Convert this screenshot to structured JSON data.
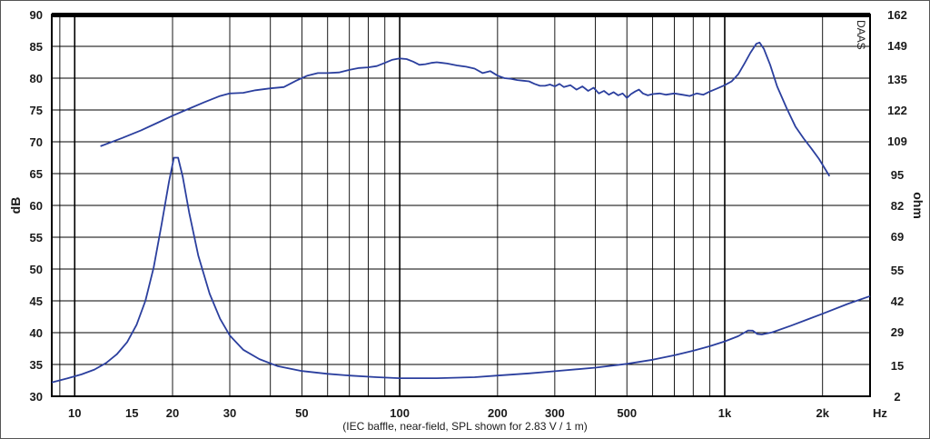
{
  "chart_data": {
    "type": "line",
    "xscale": "log",
    "xlim": [
      8.5,
      2800
    ],
    "ylim": [
      30,
      90
    ],
    "y2lim": [
      2,
      162
    ],
    "ylabel": "dB",
    "y2label": "ohm",
    "xunit": "Hz",
    "caption": "(IEC baffle, near-field, SPL shown for 2.83 V / 1 m)",
    "brand": "DAAS",
    "grid": true,
    "line_color": "#2b3f9e",
    "x_ticks": [
      {
        "v": 10,
        "label": "10"
      },
      {
        "v": 15,
        "label": "15"
      },
      {
        "v": 20,
        "label": "20"
      },
      {
        "v": 30,
        "label": "30"
      },
      {
        "v": 50,
        "label": "50"
      },
      {
        "v": 100,
        "label": "100"
      },
      {
        "v": 200,
        "label": "200"
      },
      {
        "v": 300,
        "label": "300"
      },
      {
        "v": 500,
        "label": "500"
      },
      {
        "v": 1000,
        "label": "1k"
      },
      {
        "v": 2000,
        "label": "2k"
      }
    ],
    "y_ticks": [
      {
        "v": 90,
        "label": "90"
      },
      {
        "v": 85,
        "label": "85"
      },
      {
        "v": 80,
        "label": "80"
      },
      {
        "v": 75,
        "label": "75"
      },
      {
        "v": 70,
        "label": "70"
      },
      {
        "v": 65,
        "label": "65"
      },
      {
        "v": 60,
        "label": "60"
      },
      {
        "v": 55,
        "label": "55"
      },
      {
        "v": 50,
        "label": "50"
      },
      {
        "v": 45,
        "label": "45"
      },
      {
        "v": 40,
        "label": "40"
      },
      {
        "v": 35,
        "label": "35"
      },
      {
        "v": 30,
        "label": "30"
      }
    ],
    "y2_ticks": [
      {
        "v": 162,
        "label": "162"
      },
      {
        "v": 149,
        "label": "149"
      },
      {
        "v": 135,
        "label": "135"
      },
      {
        "v": 122,
        "label": "122"
      },
      {
        "v": 109,
        "label": "109"
      },
      {
        "v": 95,
        "label": "95"
      },
      {
        "v": 82,
        "label": "82"
      },
      {
        "v": 69,
        "label": "69"
      },
      {
        "v": 55,
        "label": "55"
      },
      {
        "v": 42,
        "label": "42"
      },
      {
        "v": 29,
        "label": "29"
      },
      {
        "v": 15,
        "label": "15"
      },
      {
        "v": 2,
        "label": "2"
      }
    ],
    "series": [
      {
        "axis": "left",
        "points": [
          [
            12,
            69.3
          ],
          [
            14,
            70.6
          ],
          [
            16,
            71.8
          ],
          [
            18,
            73.0
          ],
          [
            20,
            74.1
          ],
          [
            22,
            75.0
          ],
          [
            25,
            76.2
          ],
          [
            28,
            77.2
          ],
          [
            30,
            77.6
          ],
          [
            33,
            77.7
          ],
          [
            36,
            78.1
          ],
          [
            40,
            78.4
          ],
          [
            44,
            78.6
          ],
          [
            48,
            79.6
          ],
          [
            52,
            80.4
          ],
          [
            56,
            80.8
          ],
          [
            60,
            80.8
          ],
          [
            65,
            80.9
          ],
          [
            70,
            81.3
          ],
          [
            75,
            81.6
          ],
          [
            80,
            81.7
          ],
          [
            85,
            81.9
          ],
          [
            90,
            82.4
          ],
          [
            95,
            82.9
          ],
          [
            100,
            83.1
          ],
          [
            105,
            83.0
          ],
          [
            110,
            82.6
          ],
          [
            115,
            82.1
          ],
          [
            120,
            82.2
          ],
          [
            125,
            82.4
          ],
          [
            130,
            82.5
          ],
          [
            135,
            82.4
          ],
          [
            140,
            82.3
          ],
          [
            150,
            82.0
          ],
          [
            160,
            81.8
          ],
          [
            170,
            81.5
          ],
          [
            180,
            80.8
          ],
          [
            190,
            81.1
          ],
          [
            200,
            80.4
          ],
          [
            210,
            80.0
          ],
          [
            220,
            79.9
          ],
          [
            230,
            79.7
          ],
          [
            240,
            79.6
          ],
          [
            250,
            79.5
          ],
          [
            260,
            79.1
          ],
          [
            270,
            78.8
          ],
          [
            280,
            78.8
          ],
          [
            290,
            79.0
          ],
          [
            300,
            78.7
          ],
          [
            310,
            79.1
          ],
          [
            320,
            78.6
          ],
          [
            335,
            78.9
          ],
          [
            350,
            78.2
          ],
          [
            365,
            78.7
          ],
          [
            380,
            78.0
          ],
          [
            395,
            78.5
          ],
          [
            410,
            77.6
          ],
          [
            425,
            78.0
          ],
          [
            440,
            77.4
          ],
          [
            455,
            77.8
          ],
          [
            470,
            77.3
          ],
          [
            485,
            77.6
          ],
          [
            500,
            76.9
          ],
          [
            515,
            77.5
          ],
          [
            530,
            77.9
          ],
          [
            545,
            78.2
          ],
          [
            560,
            77.6
          ],
          [
            580,
            77.3
          ],
          [
            600,
            77.5
          ],
          [
            630,
            77.6
          ],
          [
            660,
            77.4
          ],
          [
            700,
            77.6
          ],
          [
            740,
            77.4
          ],
          [
            780,
            77.2
          ],
          [
            820,
            77.6
          ],
          [
            860,
            77.4
          ],
          [
            900,
            77.9
          ],
          [
            950,
            78.4
          ],
          [
            1000,
            78.9
          ],
          [
            1050,
            79.5
          ],
          [
            1100,
            80.6
          ],
          [
            1150,
            82.3
          ],
          [
            1200,
            84.0
          ],
          [
            1250,
            85.4
          ],
          [
            1280,
            85.6
          ],
          [
            1320,
            84.6
          ],
          [
            1380,
            82.1
          ],
          [
            1450,
            78.7
          ],
          [
            1550,
            75.3
          ],
          [
            1650,
            72.4
          ],
          [
            1750,
            70.5
          ],
          [
            1850,
            68.9
          ],
          [
            1950,
            67.3
          ],
          [
            2050,
            65.5
          ],
          [
            2100,
            64.6
          ]
        ]
      },
      {
        "axis": "right",
        "points": [
          [
            8.5,
            7.8
          ],
          [
            9.5,
            9.5
          ],
          [
            10.5,
            11.2
          ],
          [
            11.5,
            13.2
          ],
          [
            12.5,
            16.0
          ],
          [
            13.5,
            19.7
          ],
          [
            14.5,
            24.7
          ],
          [
            15.5,
            32.0
          ],
          [
            16.5,
            42.0
          ],
          [
            17.5,
            56.0
          ],
          [
            18.5,
            74.0
          ],
          [
            19.5,
            92.0
          ],
          [
            20.2,
            102.0
          ],
          [
            20.8,
            102.0
          ],
          [
            21.5,
            94.0
          ],
          [
            22.5,
            79.0
          ],
          [
            24,
            61.0
          ],
          [
            26,
            45.0
          ],
          [
            28,
            34.5
          ],
          [
            30,
            27.5
          ],
          [
            33,
            21.5
          ],
          [
            37,
            17.6
          ],
          [
            42,
            14.7
          ],
          [
            50,
            12.6
          ],
          [
            60,
            11.4
          ],
          [
            70,
            10.7
          ],
          [
            85,
            10.0
          ],
          [
            100,
            9.6
          ],
          [
            130,
            9.6
          ],
          [
            170,
            10.0
          ],
          [
            200,
            10.7
          ],
          [
            250,
            11.6
          ],
          [
            300,
            12.5
          ],
          [
            400,
            14.0
          ],
          [
            500,
            15.6
          ],
          [
            600,
            17.3
          ],
          [
            700,
            19.2
          ],
          [
            800,
            21.1
          ],
          [
            900,
            23.0
          ],
          [
            1000,
            25.0
          ],
          [
            1100,
            27.2
          ],
          [
            1180,
            29.6
          ],
          [
            1220,
            29.5
          ],
          [
            1260,
            28.1
          ],
          [
            1300,
            27.9
          ],
          [
            1400,
            28.8
          ],
          [
            1600,
            31.6
          ],
          [
            2000,
            36.6
          ],
          [
            2400,
            40.8
          ],
          [
            2800,
            44.0
          ]
        ]
      }
    ]
  }
}
